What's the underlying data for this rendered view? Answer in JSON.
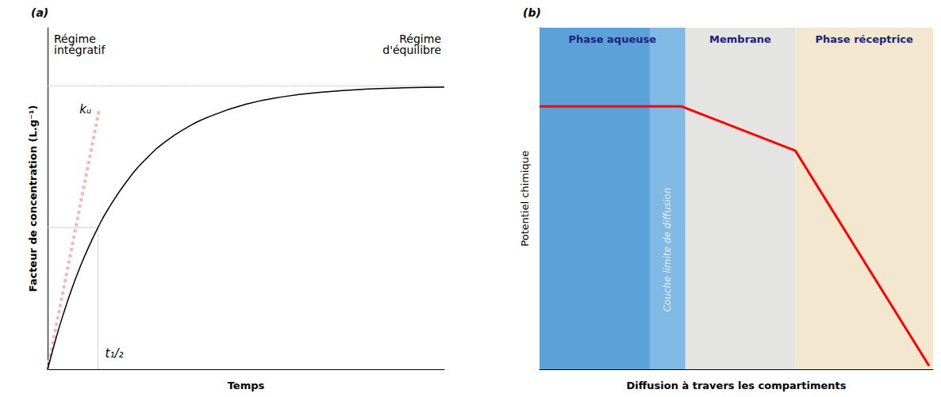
{
  "chart_data": [
    {
      "type": "line",
      "title": "(a)",
      "x_label": "Temps",
      "y_label": "Facteur de concentration (L.g⁻¹)",
      "x": [
        0,
        2,
        4,
        6,
        8,
        10,
        12.7,
        15,
        20,
        25,
        30,
        35,
        40,
        50,
        60,
        70,
        80,
        90,
        100
      ],
      "values": [
        0,
        8.6,
        16.3,
        23.2,
        29.4,
        34.9,
        41.5,
        46.4,
        55.1,
        61.8,
        66.9,
        70.7,
        73.6,
        77.6,
        79.9,
        81.2,
        82,
        82.4,
        82.6
      ],
      "color": "#000000",
      "xlim": [
        0,
        100
      ],
      "ylim": [
        0,
        100
      ],
      "grid": false,
      "tick_labels": false,
      "tangent": {
        "label": "kᵤ",
        "x": [
          0,
          13
        ],
        "values": [
          0,
          76
        ],
        "color": "#f4b6b6",
        "line_style": "dotted"
      },
      "half_life": {
        "label": "t₁/₂",
        "x": 12.7,
        "y": 41.5,
        "color": "#aaaaaa",
        "line_style": "dotted"
      },
      "plateau": {
        "y": 83,
        "color": "#aaaaaa",
        "line_style": "dotted"
      },
      "annotations": [
        "Régime intégratif",
        "Régime d'équilibre"
      ]
    },
    {
      "type": "line",
      "title": "(b)",
      "x_label": "Diffusion à travers les compartiments",
      "y_label": "Potentiel chimique",
      "x": [
        0,
        36,
        65,
        99
      ],
      "values": [
        77,
        77,
        64,
        1
      ],
      "color": "#ff0000",
      "xlim": [
        0,
        100
      ],
      "ylim": [
        0,
        100
      ],
      "grid": false,
      "tick_labels": false,
      "compartments": [
        {
          "label": "Phase aqueuse",
          "range": [
            0,
            37
          ],
          "color": "#5aa2d8"
        },
        {
          "label": "Membrane",
          "range": [
            37,
            65
          ],
          "color": "#e4e4e2"
        },
        {
          "label": "Phase réceptrice",
          "range": [
            65,
            100
          ],
          "color": "#f4e7d0"
        }
      ],
      "boundary_layer": {
        "label": "Couche limite de diffusion",
        "range": [
          28,
          37
        ],
        "color": "#86bde6"
      }
    }
  ]
}
